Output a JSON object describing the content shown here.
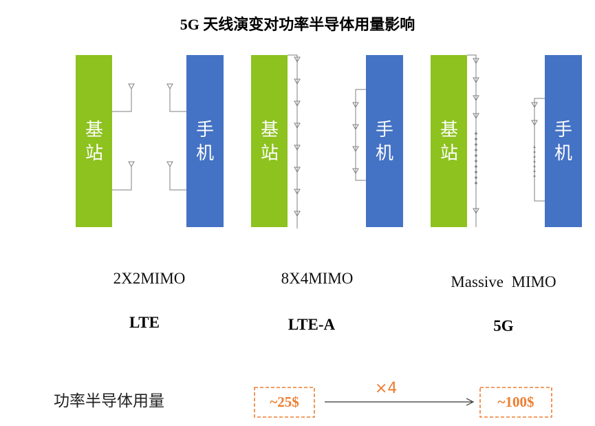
{
  "title": "5G 天线演变对功率半导体用量影响",
  "colors": {
    "base_station": "#8DC21F",
    "phone": "#4472C4",
    "accent": "#ED7D31",
    "line": "#7F7F7F"
  },
  "groups": [
    {
      "base_label": "基站",
      "phone_label": "手机",
      "mimo": "2X2MIMO",
      "generation": "LTE"
    },
    {
      "base_label": "基站",
      "phone_label": "手机",
      "mimo": "8X4MIMO",
      "generation": "LTE-A"
    },
    {
      "base_label": "基站",
      "phone_label": "手机",
      "mimo": "Massive  MIMO",
      "generation": "5G"
    }
  ],
  "semiconductor": {
    "label": "功率半导体用量",
    "from_value": "~25$",
    "to_value": "~100$",
    "multiplier": "×4"
  }
}
